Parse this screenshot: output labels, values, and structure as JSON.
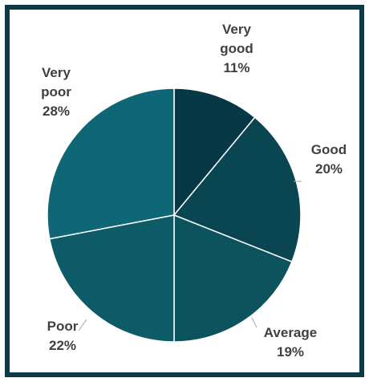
{
  "chart_data": {
    "type": "pie",
    "title": "",
    "slices": [
      {
        "label_lines": [
          "Very",
          "good"
        ],
        "pct_label": "11%",
        "value": 11,
        "color": "#063846"
      },
      {
        "label_lines": [
          "Good"
        ],
        "pct_label": "20%",
        "value": 20,
        "color": "#0a4552"
      },
      {
        "label_lines": [
          "Average"
        ],
        "pct_label": "19%",
        "value": 19,
        "color": "#0c535e"
      },
      {
        "label_lines": [
          "Poor"
        ],
        "pct_label": "22%",
        "value": 22,
        "color": "#0d5b67"
      },
      {
        "label_lines": [
          "Very",
          "poor"
        ],
        "pct_label": "28%",
        "value": 28,
        "color": "#0f6674"
      }
    ],
    "start_angle": "top",
    "direction": "clockwise",
    "legend": "none",
    "data_labels": "outside with leader lines"
  },
  "colors": {
    "frame_border": "#0b3a46",
    "label_text": "#404040",
    "leader_line": "#a6a6a6"
  }
}
